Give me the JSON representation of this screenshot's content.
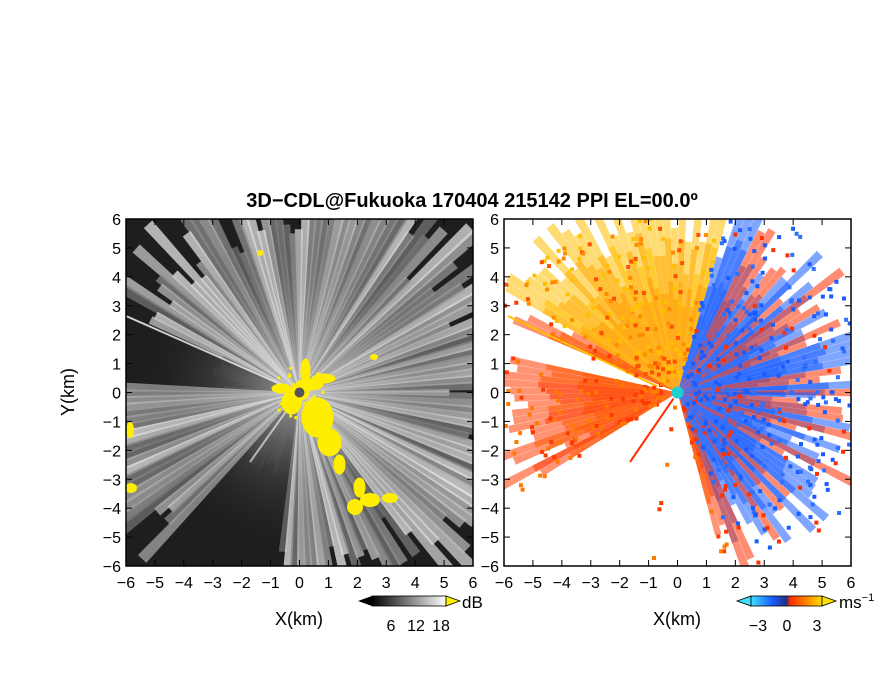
{
  "title": "3D−CDL@Fukuoka 170404 215142 PPI EL=00.0º",
  "colors": {
    "background": "#ffffff",
    "echo_highlight": "#ffee00",
    "approaching_blue": "#1a5cff",
    "receding_red": "#ff2a00",
    "receding_orange": "#ff8c00",
    "receding_yellow": "#ffd000",
    "center_marker": "#20d0d0"
  },
  "chart_data": [
    {
      "type": "heatmap",
      "name": "snr-ppi",
      "xlabel": "X(km)",
      "ylabel": "Y(km)",
      "xlim": [
        -6,
        6
      ],
      "ylim": [
        -6,
        6
      ],
      "xticks": [
        "−6",
        "−5",
        "−4",
        "−3",
        "−2",
        "−1",
        "0",
        "1",
        "2",
        "3",
        "4",
        "5",
        "6"
      ],
      "yticks": [
        "6",
        "5",
        "4",
        "3",
        "2",
        "1",
        "0",
        "−1",
        "−2",
        "−3",
        "−4",
        "−5",
        "−6"
      ],
      "colorbar": {
        "unit": "dB",
        "ticks": [
          "6",
          "12",
          "18"
        ],
        "colormap": "grayscale"
      },
      "strong_echo_color": "yellow"
    },
    {
      "type": "heatmap",
      "name": "doppler-velocity-ppi",
      "xlabel": "X(km)",
      "ylabel": "",
      "xlim": [
        -6,
        6
      ],
      "ylim": [
        -6,
        6
      ],
      "xticks": [
        "−6",
        "−5",
        "−4",
        "−3",
        "−2",
        "−1",
        "0",
        "1",
        "2",
        "3",
        "4",
        "5",
        "6"
      ],
      "yticks": [
        "6",
        "5",
        "4",
        "3",
        "2",
        "1",
        "0",
        "−1",
        "−2",
        "−3",
        "−4",
        "−5",
        "−6"
      ],
      "colorbar": {
        "unit": "ms",
        "unit_exponent": "−1",
        "ticks": [
          "−3",
          "0",
          "3"
        ],
        "colormap": "cyan-blue-red-orange-yellow"
      }
    }
  ]
}
